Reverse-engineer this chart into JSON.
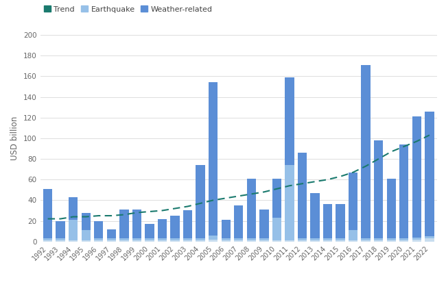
{
  "years": [
    1992,
    1993,
    1994,
    1995,
    1996,
    1997,
    1998,
    1999,
    2000,
    2001,
    2002,
    2003,
    2004,
    2005,
    2006,
    2007,
    2008,
    2009,
    2010,
    2011,
    2012,
    2013,
    2014,
    2015,
    2016,
    2017,
    2018,
    2019,
    2020,
    2021,
    2022
  ],
  "weather_related": [
    48,
    17,
    22,
    17,
    17,
    9,
    28,
    28,
    14,
    19,
    22,
    27,
    71,
    148,
    18,
    32,
    58,
    28,
    38,
    85,
    83,
    44,
    33,
    33,
    56,
    168,
    95,
    58,
    91,
    117,
    121
  ],
  "earthquake": [
    2,
    2,
    20,
    10,
    2,
    2,
    2,
    2,
    2,
    2,
    2,
    2,
    2,
    4,
    2,
    2,
    2,
    2,
    22,
    73,
    2,
    2,
    2,
    2,
    10,
    2,
    2,
    2,
    2,
    2,
    2
  ],
  "other": [
    1,
    1,
    1,
    1,
    1,
    1,
    1,
    1,
    1,
    1,
    1,
    1,
    1,
    2,
    1,
    1,
    1,
    1,
    1,
    1,
    1,
    1,
    1,
    1,
    1,
    1,
    1,
    1,
    1,
    2,
    3
  ],
  "trend_y": [
    22,
    22,
    24,
    24,
    25,
    25,
    26,
    28,
    29,
    30,
    32,
    34,
    37,
    40,
    42,
    44,
    46,
    48,
    51,
    54,
    56,
    58,
    60,
    63,
    67,
    73,
    80,
    87,
    92,
    97,
    103
  ],
  "weather_color": "#5B8ED6",
  "earthquake_color": "#96C0E8",
  "other_color": "#C8DDEF",
  "trend_color": "#1A7A6E",
  "ylabel": "USD billion",
  "ylim": [
    0,
    200
  ],
  "yticks": [
    0,
    20,
    40,
    60,
    80,
    100,
    120,
    140,
    160,
    180,
    200
  ],
  "background_color": "#ffffff",
  "grid_color": "#d8d8d8",
  "legend_labels": [
    "Trend",
    "Earthquake",
    "Weather-related"
  ],
  "legend_colors": [
    "#1A7A6E",
    "#96C0E8",
    "#5B8ED6"
  ]
}
